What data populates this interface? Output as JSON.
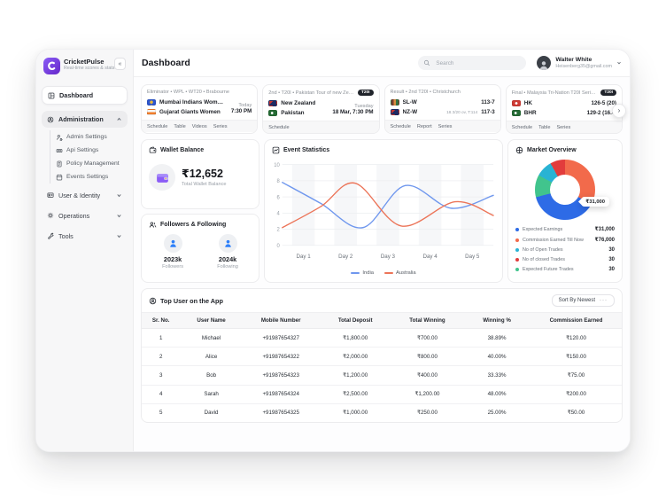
{
  "app": {
    "name": "CricketPulse",
    "tagline": "Real-time scores & stats",
    "collapse_icon": "«"
  },
  "sidebar": {
    "dashboard": {
      "label": "Dashboard"
    },
    "admin_group": {
      "label": "Administration",
      "items": [
        {
          "label": "Admin Settings"
        },
        {
          "label": "Api Settings"
        },
        {
          "label": "Policy Management"
        },
        {
          "label": "Events Settings"
        }
      ]
    },
    "groups": [
      {
        "label": "User & Identity"
      },
      {
        "label": "Operations"
      },
      {
        "label": "Tools"
      }
    ]
  },
  "header": {
    "title": "Dashboard",
    "search_placeholder": "Search",
    "user": {
      "name": "Walter White",
      "email": "Heisenberg35@gmail.com"
    }
  },
  "matches": [
    {
      "meta": "Eliminator • WPL • WT20 • Brabourne",
      "teams": [
        {
          "name": "Mumbai Indians Women",
          "flag": "radial-gradient(circle at 50% 45%, #e7b73c 0 1.6px, #2d56cf 2px)"
        },
        {
          "name": "Gujarat Giants Women",
          "flag": "linear-gradient(180deg,#f7f7f7 42%, #ef7d2b 58%)"
        }
      ],
      "when1": "Today",
      "when2": "7:30 PM",
      "links": [
        "Schedule",
        "Table",
        "Videos",
        "Series"
      ]
    },
    {
      "meta": "2nd • T20I • Pakistan Tour of new Zeal...",
      "badge": "T20I",
      "teams": [
        {
          "name": "New Zealand",
          "flag": "linear-gradient(135deg,#c8332e 0 3px,#1d2a63 3px)"
        },
        {
          "name": "Pakistan",
          "flag": "radial-gradient(circle at 40% 50%, #ffffff 0 1.2px, #256b35 1.6px)"
        }
      ],
      "when1": "Tuesday",
      "when2": "18 Mar, 7:30 PM",
      "links": [
        "Schedule"
      ]
    },
    {
      "meta": "Result • 2nd T20I • Christchurch",
      "teams": [
        {
          "name": "SL-W",
          "flag": "linear-gradient(90deg,#7a3c2e 0 30%,#d98c3f 30% 65%,#35703f 65%)",
          "score": "113-7"
        },
        {
          "name": "NZ-W",
          "flag": "linear-gradient(135deg,#c8332e 0 3px,#1d2a63 3px)",
          "note": "18.3/20 ov, T:114",
          "score": "117-3"
        }
      ],
      "links": [
        "Schedule",
        "Report",
        "Series"
      ]
    },
    {
      "meta": "Final • Malaysia Tri-Nation T20I Series...",
      "badge": "T20I",
      "teams": [
        {
          "name": "HK",
          "flag": "radial-gradient(circle at 50% 50%, #ffffff 0 1.2px, #cf3b35 1.6px)",
          "score": "126-5 (20)"
        },
        {
          "name": "BHR",
          "flag": "radial-gradient(circle at 40% 50%, #ffffff 0 1.2px, #256b35 1.6px)",
          "score": "129-2 (16.4,"
        }
      ],
      "links": [
        "Schedule",
        "Table",
        "Series"
      ]
    }
  ],
  "scroll_icon": "›",
  "wallet": {
    "title": "Wallet Balance",
    "amount": "₹12,652",
    "caption": "Total Wallet Balance"
  },
  "followers": {
    "title": "Followers & Following",
    "items": [
      {
        "value": "2023k",
        "label": "Followers"
      },
      {
        "value": "2024k",
        "label": "Following"
      }
    ]
  },
  "events": {
    "title": "Event Statistics"
  },
  "market": {
    "title": "Market Overview",
    "legend": [
      {
        "label": "Expected Earnings",
        "value": "₹31,000",
        "color": "#2e6be6"
      },
      {
        "label": "Commission Earned Till Now",
        "value": "₹76,000",
        "color": "#f26a4b"
      },
      {
        "label": "No of Open Trades",
        "value": "30",
        "color": "#29b3d4"
      },
      {
        "label": "No of closed Trades",
        "value": "30",
        "color": "#e23c3c"
      },
      {
        "label": "Expected Future Trades",
        "value": "30",
        "color": "#41c48d"
      }
    ]
  },
  "chart_data": [
    {
      "type": "line",
      "title": "Event Statistics",
      "x_ticks": [
        "Day 1",
        "Day 2",
        "Day 3",
        "Day 4",
        "Day 5"
      ],
      "x_tick_positions": [
        0.55,
        1.65,
        2.75,
        3.85,
        4.95
      ],
      "y_ticks": [
        0,
        2,
        4,
        6,
        8,
        10
      ],
      "xlim": [
        0,
        5.5
      ],
      "ylim": [
        0,
        10
      ],
      "grid": true,
      "legend_position": "bottom",
      "series": [
        {
          "name": "India",
          "color": "#6f97ee",
          "points": [
            [
              0,
              7.8
            ],
            [
              1,
              5.2
            ],
            [
              2.1,
              2.2
            ],
            [
              3.2,
              7.4
            ],
            [
              4.4,
              4.6
            ],
            [
              5.5,
              6.2
            ]
          ]
        },
        {
          "name": "Australia",
          "color": "#ec7458",
          "points": [
            [
              0,
              2.2
            ],
            [
              1,
              4.8
            ],
            [
              1.9,
              7.7
            ],
            [
              3.1,
              2.4
            ],
            [
              4.5,
              5.4
            ],
            [
              5.5,
              3.7
            ]
          ]
        }
      ]
    },
    {
      "type": "pie",
      "title": "Market Overview",
      "donut": true,
      "labels": [
        "Commission Earned Till Now",
        "Expected Earnings",
        "Expected Future Trades",
        "No of Open Trades",
        "No of closed Trades"
      ],
      "values": [
        33,
        38,
        12,
        9,
        8
      ],
      "colors": [
        "#f26a4b",
        "#2e6be6",
        "#41c48d",
        "#29b3d4",
        "#e23c3c"
      ],
      "tooltip": "₹31,000"
    }
  ],
  "table": {
    "title": "Top User on the App",
    "sort_label": "Sort By Newest",
    "sort_more_icon": "···",
    "columns": [
      "Sr. No.",
      "User Name",
      "Mobile Number",
      "Total Deposit",
      "Total Winning",
      "Winning %",
      "Commission Earned"
    ],
    "rows": [
      [
        "1",
        "Michael",
        "+91987654327",
        "₹1,800.00",
        "₹700.00",
        "38.89%",
        "₹120.00"
      ],
      [
        "2",
        "Alice",
        "+91987654322",
        "₹2,000.00",
        "₹800.00",
        "40.00%",
        "₹150.00"
      ],
      [
        "3",
        "Bob",
        "+91987654323",
        "₹1,200.00",
        "₹400.00",
        "33.33%",
        "₹75.00"
      ],
      [
        "4",
        "Sarah",
        "+91987654324",
        "₹2,500.00",
        "₹1,200.00",
        "48.00%",
        "₹200.00"
      ],
      [
        "5",
        "David",
        "+91987654325",
        "₹1,000.00",
        "₹250.00",
        "25.00%",
        "₹50.00"
      ]
    ]
  }
}
